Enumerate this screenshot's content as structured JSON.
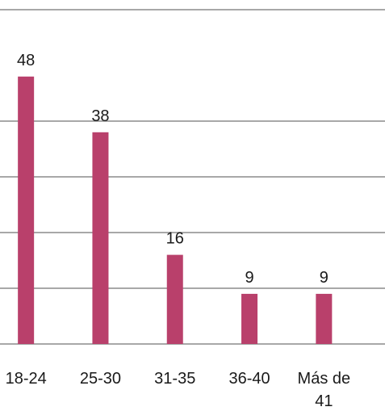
{
  "chart_data": {
    "type": "bar",
    "categories": [
      "18-24",
      "25-30",
      "31-35",
      "36-40",
      "Más de 41"
    ],
    "values": [
      48,
      38,
      16,
      9,
      9
    ],
    "color": "#b9406b",
    "ylim": [
      0,
      60
    ],
    "yticks": [
      0,
      10,
      20,
      30,
      40,
      60
    ],
    "grid": true
  }
}
